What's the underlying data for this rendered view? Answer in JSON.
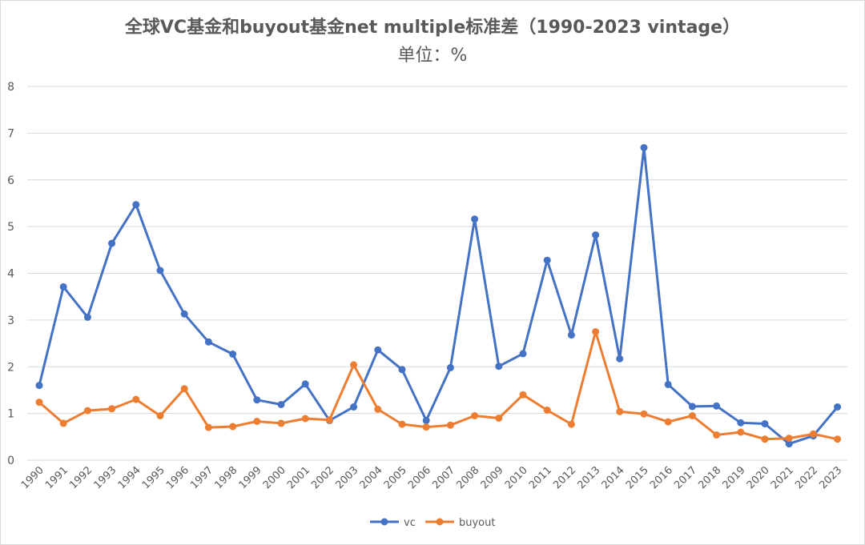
{
  "chart": {
    "title": "全球VC基金和buyout基金net multiple标准差（1990-2023 vintage）",
    "subtitle": "单位：%"
  },
  "colors": {
    "vc": "#4472C4",
    "buyout": "#ED7D31",
    "grid": "#d9d9d9",
    "text": "#595959"
  },
  "chart_data": {
    "type": "line",
    "title": "全球VC基金和buyout基金net multiple标准差（1990-2023 vintage）",
    "subtitle": "单位：%",
    "xlabel": "",
    "ylabel": "",
    "ylim": [
      0,
      8
    ],
    "yticks": [
      0,
      1,
      2,
      3,
      4,
      5,
      6,
      7,
      8
    ],
    "grid": true,
    "legend_position": "bottom",
    "categories": [
      "1990",
      "1991",
      "1992",
      "1993",
      "1994",
      "1995",
      "1996",
      "1997",
      "1998",
      "1999",
      "2000",
      "2001",
      "2002",
      "2003",
      "2004",
      "2005",
      "2006",
      "2007",
      "2008",
      "2009",
      "2010",
      "2011",
      "2012",
      "2013",
      "2014",
      "2015",
      "2016",
      "2017",
      "2018",
      "2019",
      "2020",
      "2021",
      "2022",
      "2023"
    ],
    "series": [
      {
        "name": "vc",
        "color": "#4472C4",
        "values": [
          1.6,
          3.71,
          3.06,
          4.64,
          5.47,
          4.06,
          3.13,
          2.53,
          2.27,
          1.29,
          1.19,
          1.63,
          0.85,
          1.14,
          2.36,
          1.94,
          0.85,
          1.98,
          5.16,
          2.01,
          2.28,
          4.28,
          2.68,
          4.82,
          2.17,
          6.69,
          1.62,
          1.15,
          1.16,
          0.8,
          0.78,
          0.35,
          0.52,
          1.14
        ]
      },
      {
        "name": "buyout",
        "color": "#ED7D31",
        "values": [
          1.24,
          0.79,
          1.06,
          1.1,
          1.3,
          0.95,
          1.53,
          0.7,
          0.72,
          0.83,
          0.79,
          0.89,
          0.86,
          2.04,
          1.09,
          0.77,
          0.71,
          0.75,
          0.95,
          0.9,
          1.4,
          1.07,
          0.77,
          2.75,
          1.04,
          0.99,
          0.82,
          0.95,
          0.54,
          0.6,
          0.45,
          0.47,
          0.56,
          0.45
        ]
      }
    ]
  }
}
